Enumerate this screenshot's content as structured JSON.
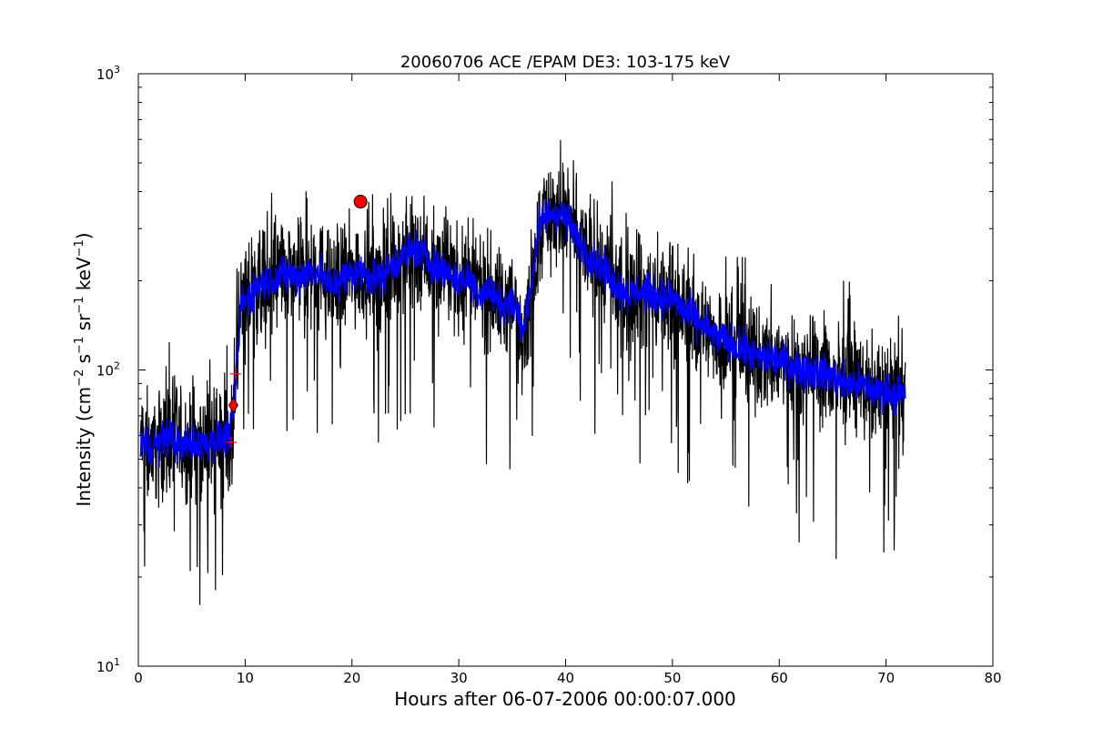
{
  "chart_data": {
    "type": "line",
    "title": "20060706 ACE /EPAM DE3: 103-175 keV",
    "xlabel": "Hours after 06-07-2006 00:00:07.000",
    "ylabel_main": "Intensity (cm",
    "ylabel_sup1": "−2",
    "ylabel_mid1": " s",
    "ylabel_sup2": "−1",
    "ylabel_mid2": " sr",
    "ylabel_sup3": "−1",
    "ylabel_mid3": " keV",
    "ylabel_sup4": "−1",
    "ylabel_end": ")",
    "xlim": [
      0,
      80
    ],
    "ylim": [
      10,
      1000
    ],
    "yscale": "log",
    "grid": false,
    "x_ticks": [
      0,
      10,
      20,
      30,
      40,
      50,
      60,
      70,
      80
    ],
    "x_tick_labels": [
      "0",
      "10",
      "20",
      "30",
      "40",
      "50",
      "60",
      "70",
      "80"
    ],
    "y_ticks": [
      10,
      100,
      1000
    ],
    "y_tick_labels": [
      {
        "base": "10",
        "exp": "1"
      },
      {
        "base": "10",
        "exp": "2"
      },
      {
        "base": "10",
        "exp": "3"
      }
    ],
    "series": [
      {
        "color": "#000000",
        "style": "raw noisy line",
        "x": [
          0.2,
          1,
          2,
          3,
          4,
          5,
          6,
          7,
          8,
          8.8,
          9.3,
          9.6,
          10,
          11,
          12,
          13,
          14,
          15,
          16,
          17,
          18,
          19,
          20,
          21,
          22,
          23,
          24,
          25,
          26,
          27,
          28,
          29,
          30,
          31,
          32,
          33,
          34,
          35,
          36,
          36.5,
          37,
          37.5,
          38,
          39,
          40,
          41,
          42,
          43,
          44,
          45,
          46,
          47,
          48,
          49,
          50,
          51,
          52,
          53,
          54,
          55,
          56,
          57,
          58,
          59,
          60,
          61,
          62,
          63,
          64,
          65,
          66,
          67,
          68,
          69,
          70,
          71,
          71.8
        ],
        "y": [
          58,
          55,
          57,
          60,
          55,
          57,
          56,
          58,
          58,
          65,
          110,
          170,
          170,
          190,
          200,
          205,
          210,
          205,
          215,
          215,
          190,
          205,
          210,
          215,
          205,
          210,
          230,
          245,
          255,
          240,
          220,
          215,
          200,
          205,
          180,
          185,
          165,
          170,
          140,
          160,
          220,
          300,
          330,
          340,
          330,
          280,
          250,
          230,
          210,
          190,
          180,
          185,
          180,
          175,
          175,
          160,
          150,
          140,
          130,
          125,
          120,
          115,
          110,
          110,
          108,
          105,
          100,
          100,
          98,
          95,
          90,
          90,
          88,
          85,
          85,
          83,
          82
        ]
      },
      {
        "color": "#0000ff",
        "style": "smoothed line",
        "x": [
          0.2,
          1,
          2,
          3,
          4,
          5,
          6,
          7,
          8,
          8.8,
          9.3,
          9.6,
          10,
          11,
          12,
          13,
          14,
          15,
          16,
          17,
          18,
          19,
          20,
          21,
          22,
          23,
          24,
          25,
          26,
          27,
          28,
          29,
          30,
          31,
          32,
          33,
          34,
          35,
          36,
          36.5,
          37,
          37.5,
          38,
          39,
          40,
          41,
          42,
          43,
          44,
          45,
          46,
          47,
          48,
          49,
          50,
          51,
          52,
          53,
          54,
          55,
          56,
          57,
          58,
          59,
          60,
          61,
          62,
          63,
          64,
          65,
          66,
          67,
          68,
          69,
          70,
          71,
          71.8
        ],
        "y": [
          58,
          55,
          57,
          60,
          55,
          57,
          56,
          58,
          58,
          65,
          110,
          170,
          170,
          190,
          200,
          205,
          210,
          205,
          215,
          215,
          190,
          205,
          210,
          215,
          205,
          210,
          230,
          245,
          255,
          240,
          220,
          215,
          200,
          205,
          180,
          185,
          165,
          170,
          140,
          160,
          220,
          300,
          330,
          340,
          330,
          280,
          250,
          230,
          210,
          190,
          180,
          185,
          180,
          175,
          175,
          160,
          150,
          140,
          130,
          125,
          120,
          115,
          110,
          110,
          108,
          105,
          100,
          100,
          98,
          95,
          90,
          90,
          88,
          85,
          85,
          83,
          82
        ]
      }
    ],
    "markers": [
      {
        "shape": "circle",
        "color": "#ff0000",
        "x": 20.8,
        "y": 370
      },
      {
        "shape": "diamond",
        "color": "#ff0000",
        "x": 8.9,
        "y": 76
      },
      {
        "shape": "plus",
        "color": "#ff0000",
        "x": 9.1,
        "y": 97
      },
      {
        "shape": "plus",
        "color": "#ff0000",
        "x": 8.7,
        "y": 57
      }
    ]
  }
}
